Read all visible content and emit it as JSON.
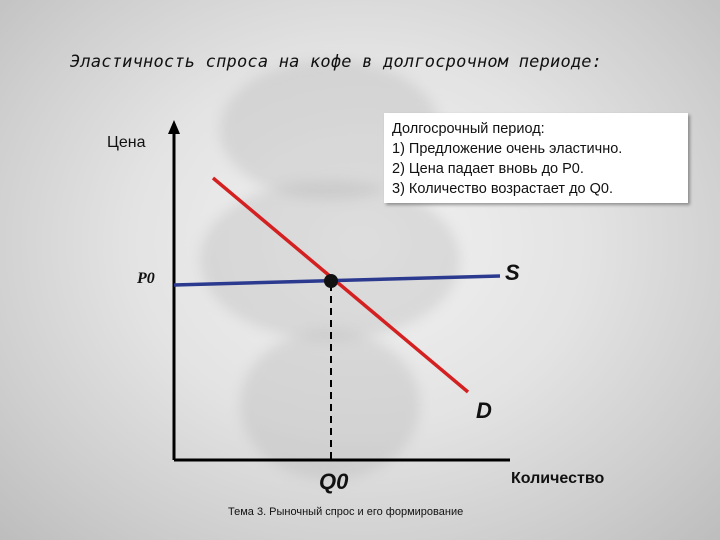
{
  "title": "Эластичность спроса на кофе в долгосрочном периоде:",
  "note": {
    "line1": "Долгосрочный период:",
    "line2": "1) Предложение очень эластично.",
    "line3": "2) Цена падает вновь до P0.",
    "line4": "3) Количество возрастает до Q0."
  },
  "axes": {
    "y_label": "Цена",
    "x_label": "Количество"
  },
  "labels": {
    "p0": "P0",
    "q0": "Q0",
    "supply": "S",
    "demand": "D"
  },
  "footer": "Тема 3. Рыночный спрос и его формирование",
  "colors": {
    "supply_line": "#2b3a8f",
    "demand_line": "#d42020",
    "axis": "#000000"
  }
}
